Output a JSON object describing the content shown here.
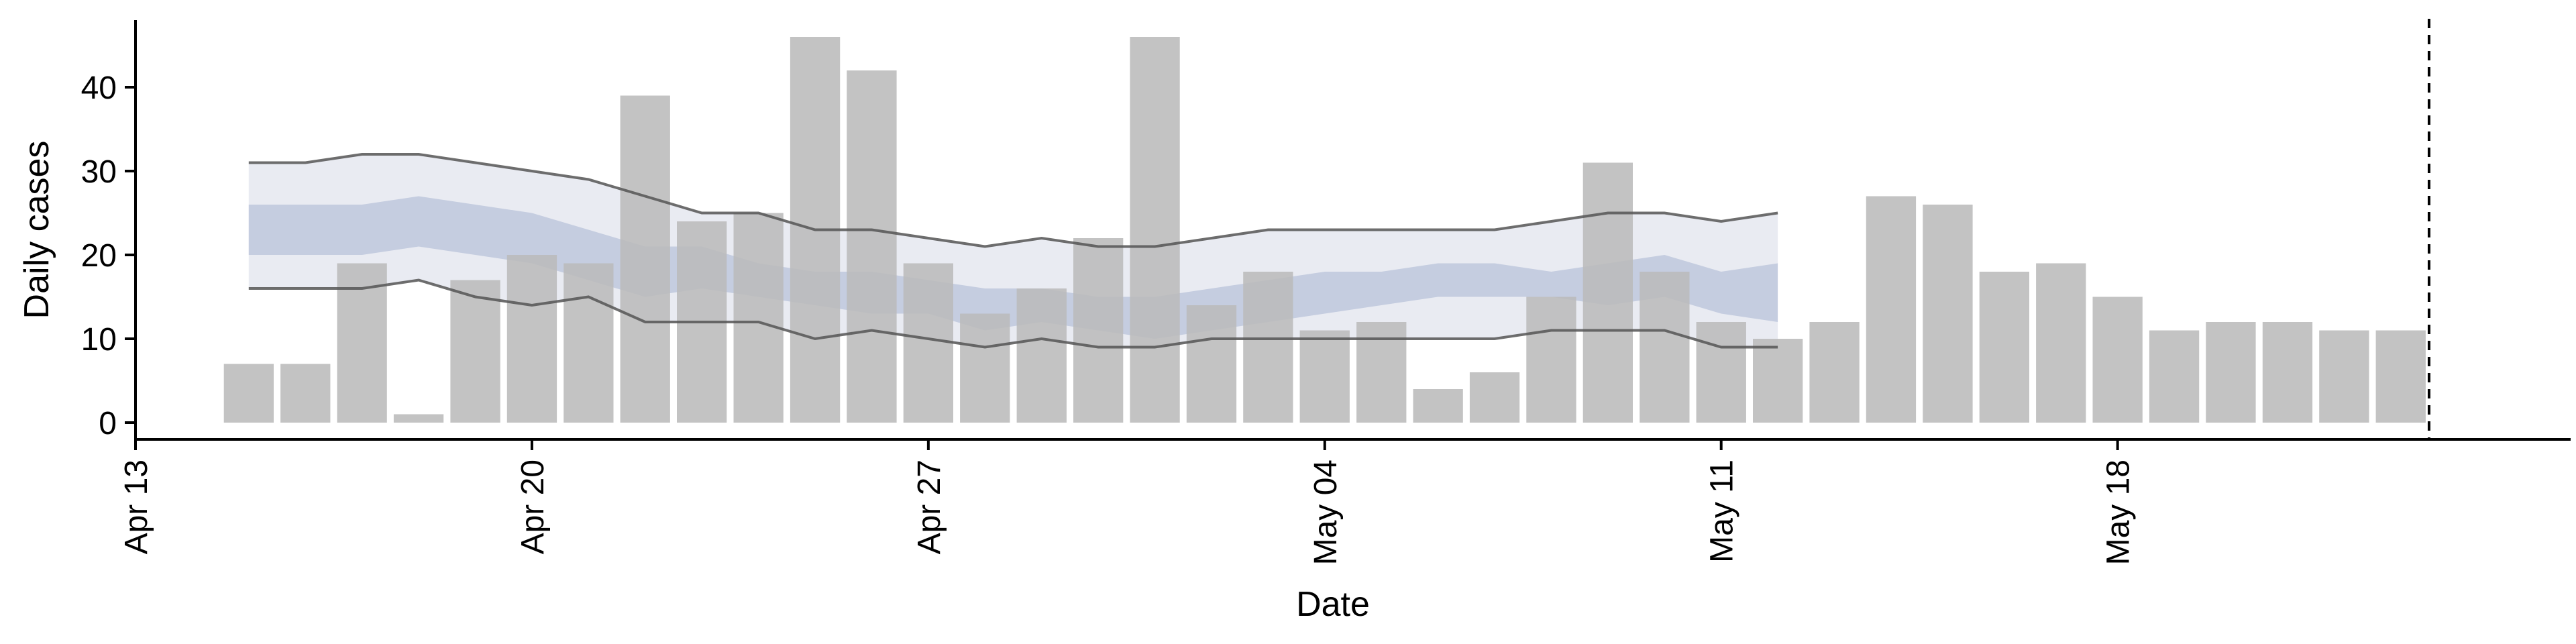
{
  "chart_data": {
    "type": "bar",
    "title": "",
    "xlabel": "Date",
    "ylabel": "Daily cases",
    "xlim": [
      "2020-04-13",
      "2020-05-26"
    ],
    "ylim": [
      -2,
      48
    ],
    "x_ticks": [
      {
        "date": "2020-04-13",
        "label": "Apr 13"
      },
      {
        "date": "2020-04-20",
        "label": "Apr 20"
      },
      {
        "date": "2020-04-27",
        "label": "Apr 27"
      },
      {
        "date": "2020-05-04",
        "label": "May 04"
      },
      {
        "date": "2020-05-11",
        "label": "May 11"
      },
      {
        "date": "2020-05-18",
        "label": "May 18"
      }
    ],
    "y_ticks": [
      0,
      10,
      20,
      30,
      40
    ],
    "grid": false,
    "bars": {
      "color": "#bbbbbb",
      "dates": [
        "2020-04-15",
        "2020-04-16",
        "2020-04-17",
        "2020-04-18",
        "2020-04-19",
        "2020-04-20",
        "2020-04-21",
        "2020-04-22",
        "2020-04-23",
        "2020-04-24",
        "2020-04-25",
        "2020-04-26",
        "2020-04-27",
        "2020-04-28",
        "2020-04-29",
        "2020-04-30",
        "2020-05-01",
        "2020-05-02",
        "2020-05-03",
        "2020-05-04",
        "2020-05-05",
        "2020-05-06",
        "2020-05-07",
        "2020-05-08",
        "2020-05-09",
        "2020-05-10",
        "2020-05-11",
        "2020-05-12",
        "2020-05-13",
        "2020-05-14",
        "2020-05-15",
        "2020-05-16",
        "2020-05-17",
        "2020-05-18",
        "2020-05-19",
        "2020-05-20",
        "2020-05-21",
        "2020-05-22",
        "2020-05-23"
      ],
      "values": [
        7,
        7,
        19,
        1,
        17,
        20,
        19,
        39,
        24,
        25,
        46,
        42,
        19,
        13,
        16,
        22,
        46,
        14,
        18,
        11,
        12,
        4,
        6,
        15,
        31,
        18,
        12,
        10,
        12,
        27,
        26,
        18,
        19,
        15,
        11,
        12,
        12,
        11,
        11
      ]
    },
    "band_dates": [
      "2020-04-15",
      "2020-04-16",
      "2020-04-17",
      "2020-04-18",
      "2020-04-19",
      "2020-04-20",
      "2020-04-21",
      "2020-04-22",
      "2020-04-23",
      "2020-04-24",
      "2020-04-25",
      "2020-04-26",
      "2020-04-27",
      "2020-04-28",
      "2020-04-29",
      "2020-04-30",
      "2020-05-01",
      "2020-05-02",
      "2020-05-03",
      "2020-05-04",
      "2020-05-05",
      "2020-05-06",
      "2020-05-07",
      "2020-05-08",
      "2020-05-09",
      "2020-05-10",
      "2020-05-11",
      "2020-05-12"
    ],
    "outer_band": {
      "color": "#e9ebf2",
      "upper": [
        31,
        31,
        32,
        32,
        31,
        30,
        29,
        27,
        25,
        25,
        23,
        23,
        22,
        21,
        22,
        21,
        21,
        22,
        23,
        23,
        23,
        23,
        23,
        24,
        25,
        25,
        24,
        25
      ],
      "lower": [
        16,
        16,
        16,
        17,
        15,
        14,
        15,
        12,
        12,
        12,
        10,
        11,
        10,
        9,
        10,
        9,
        9,
        10,
        10,
        10,
        10,
        10,
        10,
        11,
        11,
        11,
        9,
        9
      ]
    },
    "inner_band": {
      "color": "#c5cde0",
      "upper": [
        26,
        26,
        26,
        27,
        26,
        25,
        23,
        21,
        21,
        19,
        18,
        18,
        17,
        16,
        16,
        15,
        15,
        16,
        17,
        18,
        18,
        19,
        19,
        18,
        19,
        20,
        18,
        19
      ],
      "lower": [
        20,
        20,
        20,
        21,
        20,
        19,
        17,
        15,
        16,
        15,
        14,
        13,
        13,
        11,
        12,
        11,
        10,
        11,
        12,
        13,
        14,
        15,
        15,
        15,
        14,
        15,
        13,
        12
      ]
    },
    "line_color": "#555555",
    "lines": {
      "upper": [
        31,
        31,
        32,
        32,
        31,
        30,
        29,
        27,
        25,
        25,
        23,
        23,
        22,
        21,
        22,
        21,
        21,
        22,
        23,
        23,
        23,
        23,
        23,
        24,
        25,
        25,
        24,
        25
      ],
      "lower": [
        16,
        16,
        16,
        17,
        15,
        14,
        15,
        12,
        12,
        12,
        10,
        11,
        10,
        9,
        10,
        9,
        9,
        10,
        10,
        10,
        10,
        10,
        10,
        11,
        11,
        11,
        9,
        9
      ]
    },
    "vline": {
      "date": "2020-05-23",
      "style": "dashed",
      "color": "#000000"
    }
  }
}
